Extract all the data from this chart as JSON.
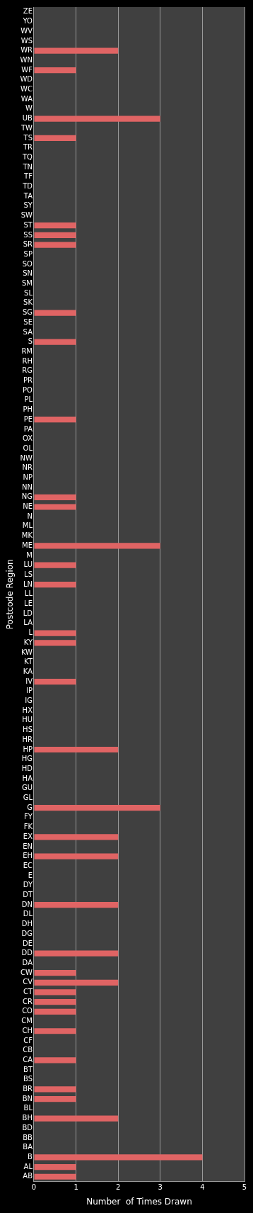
{
  "chart_data": {
    "type": "bar",
    "orientation": "horizontal",
    "xlabel": "Number  of Times Drawn",
    "ylabel": "Postcode Region",
    "categories": [
      "ZE",
      "YO",
      "WV",
      "WS",
      "WR",
      "WN",
      "WF",
      "WD",
      "WC",
      "WA",
      "W",
      "UB",
      "TW",
      "TS",
      "TR",
      "TQ",
      "TN",
      "TF",
      "TD",
      "TA",
      "SY",
      "SW",
      "ST",
      "SS",
      "SR",
      "SP",
      "SO",
      "SN",
      "SM",
      "SL",
      "SK",
      "SG",
      "SE",
      "SA",
      "S",
      "RM",
      "RH",
      "RG",
      "PR",
      "PO",
      "PL",
      "PH",
      "PE",
      "PA",
      "OX",
      "OL",
      "NW",
      "NR",
      "NP",
      "NN",
      "NG",
      "NE",
      "N",
      "ML",
      "MK",
      "ME",
      "M",
      "LU",
      "LS",
      "LN",
      "LL",
      "LE",
      "LD",
      "LA",
      "L",
      "KY",
      "KW",
      "KT",
      "KA",
      "IV",
      "IP",
      "IG",
      "HX",
      "HU",
      "HS",
      "HR",
      "HP",
      "HG",
      "HD",
      "HA",
      "GU",
      "GL",
      "G",
      "FY",
      "FK",
      "EX",
      "EN",
      "EH",
      "EC",
      "E",
      "DY",
      "DT",
      "DN",
      "DL",
      "DH",
      "DG",
      "DE",
      "DD",
      "DA",
      "CW",
      "CV",
      "CT",
      "CR",
      "CO",
      "CM",
      "CH",
      "CF",
      "CB",
      "CA",
      "BT",
      "BS",
      "BR",
      "BN",
      "BL",
      "BH",
      "BD",
      "BB",
      "BA",
      "B",
      "AL",
      "AB"
    ],
    "values": [
      0,
      0,
      0,
      0,
      2,
      0,
      1,
      0,
      0,
      0,
      0,
      3,
      0,
      1,
      0,
      0,
      0,
      0,
      0,
      0,
      0,
      0,
      1,
      1,
      1,
      0,
      0,
      0,
      0,
      0,
      0,
      1,
      0,
      0,
      1,
      0,
      0,
      0,
      0,
      0,
      0,
      0,
      1,
      0,
      0,
      0,
      0,
      0,
      0,
      0,
      1,
      1,
      0,
      0,
      0,
      3,
      0,
      1,
      0,
      1,
      0,
      0,
      0,
      0,
      1,
      1,
      0,
      0,
      0,
      1,
      0,
      0,
      0,
      0,
      0,
      0,
      2,
      0,
      0,
      0,
      0,
      0,
      3,
      0,
      0,
      2,
      0,
      2,
      0,
      0,
      0,
      0,
      2,
      0,
      0,
      0,
      0,
      2,
      0,
      1,
      2,
      1,
      1,
      1,
      0,
      1,
      0,
      0,
      1,
      0,
      0,
      1,
      1,
      0,
      2,
      0,
      0,
      0,
      4,
      1,
      1
    ],
    "color": "#e06464",
    "xlim": [
      0,
      5
    ],
    "xticks": [
      0,
      1,
      2,
      3,
      4,
      5
    ],
    "grid": "x"
  }
}
